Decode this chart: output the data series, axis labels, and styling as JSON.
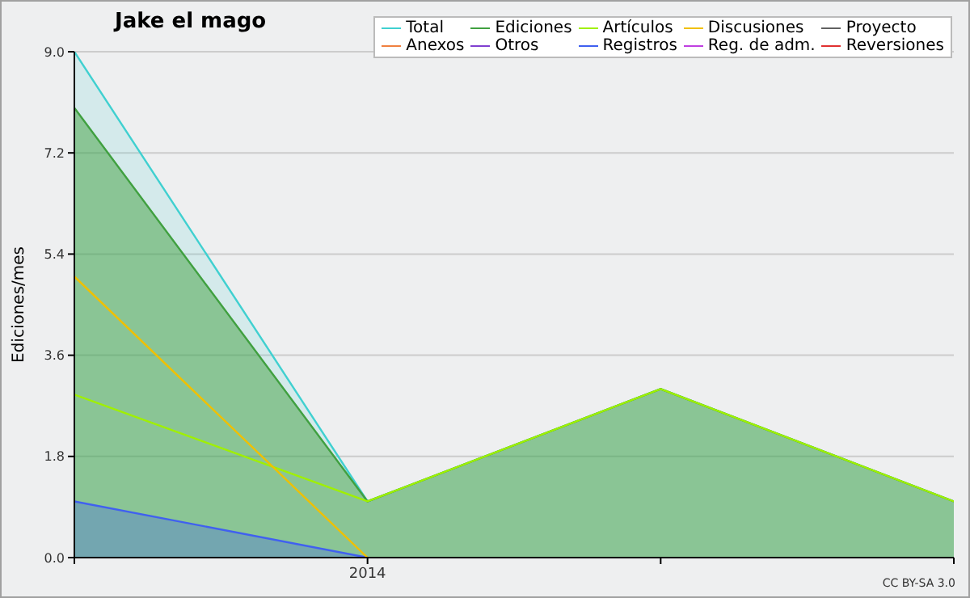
{
  "chart_data": {
    "type": "line",
    "title": "Jake el mago",
    "ylabel": "Ediciones/mes",
    "annotations": [
      "CC BY-SA 3.0"
    ],
    "categories": [
      null,
      "2014",
      null,
      null
    ],
    "series": [
      {
        "name": "Total",
        "type": "area",
        "color": "#40d0d0",
        "values": [
          9,
          1,
          3,
          1
        ]
      },
      {
        "name": "Ediciones",
        "type": "area",
        "color": "#40a040",
        "values": [
          8,
          1,
          3,
          1
        ]
      },
      {
        "name": "Artículos",
        "color": "#a0f000",
        "values": [
          2.9,
          1,
          3,
          1
        ]
      },
      {
        "name": "Discusiones",
        "color": "#f0c000",
        "values": [
          5,
          0,
          null,
          null
        ]
      },
      {
        "name": "Proyecto",
        "color": "#606060",
        "values": [
          null,
          null,
          null,
          null
        ]
      },
      {
        "name": "Anexos",
        "color": "#f08040",
        "values": [
          null,
          null,
          null,
          null
        ]
      },
      {
        "name": "Otros",
        "color": "#8040d0",
        "values": [
          null,
          null,
          null,
          null
        ]
      },
      {
        "name": "Registros",
        "type": "area",
        "color": "#4060f0",
        "values": [
          1,
          0,
          null,
          null
        ]
      },
      {
        "name": "Reg. de adm.",
        "color": "#c040e0",
        "values": [
          null,
          null,
          null,
          null
        ]
      },
      {
        "name": "Reversiones",
        "color": "#e03030",
        "values": [
          null,
          null,
          null,
          null
        ]
      }
    ],
    "ylim": [
      0,
      9
    ],
    "yticks": [
      {
        "value": 0,
        "label": "0.0"
      },
      1.8,
      3.6,
      5.4,
      7.2,
      {
        "value": 9,
        "label": "9.0"
      }
    ],
    "grid": "y",
    "legend": "top right"
  }
}
